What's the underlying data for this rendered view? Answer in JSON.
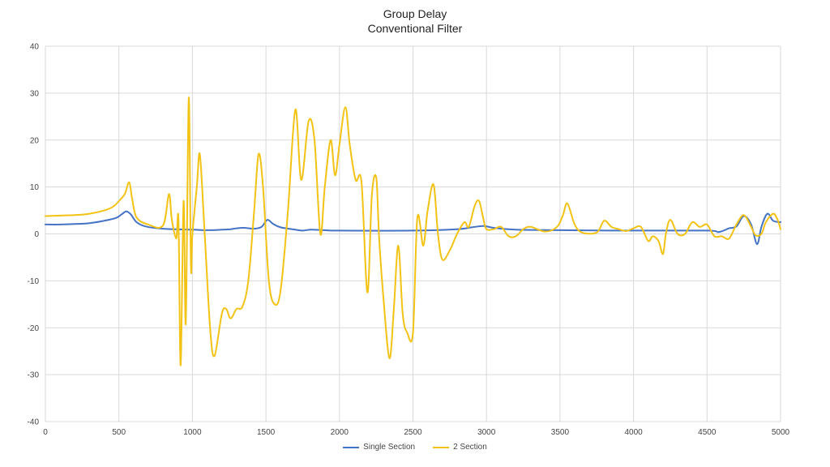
{
  "chart_data": {
    "type": "line",
    "title": "Group Delay",
    "subtitle": "Conventional Filter",
    "xlabel": "",
    "ylabel": "",
    "xlim": [
      0,
      5000
    ],
    "ylim": [
      -40,
      40
    ],
    "x_ticks": [
      0,
      500,
      1000,
      1500,
      2000,
      2500,
      3000,
      3500,
      4000,
      4500,
      5000
    ],
    "y_ticks": [
      40,
      30,
      20,
      10,
      0,
      -10,
      -20,
      -30,
      -40
    ],
    "grid": true,
    "legend_position": "bottom",
    "series": [
      {
        "name": "Single Section",
        "color": "#4472c4",
        "points": [
          [
            0,
            2
          ],
          [
            100,
            2
          ],
          [
            200,
            2.1
          ],
          [
            300,
            2.3
          ],
          [
            400,
            2.8
          ],
          [
            480,
            3.4
          ],
          [
            520,
            4.2
          ],
          [
            550,
            4.8
          ],
          [
            580,
            4.2
          ],
          [
            620,
            2.5
          ],
          [
            680,
            1.6
          ],
          [
            800,
            1.1
          ],
          [
            1000,
            0.9
          ],
          [
            1100,
            0.8
          ],
          [
            1200,
            0.9
          ],
          [
            1260,
            1
          ],
          [
            1300,
            1.2
          ],
          [
            1350,
            1.3
          ],
          [
            1420,
            1.1
          ],
          [
            1470,
            1.5
          ],
          [
            1510,
            3
          ],
          [
            1550,
            2.1
          ],
          [
            1600,
            1.4
          ],
          [
            1700,
            0.9
          ],
          [
            1750,
            0.7
          ],
          [
            1800,
            0.9
          ],
          [
            1900,
            0.8
          ],
          [
            2000,
            0.7
          ],
          [
            2500,
            0.7
          ],
          [
            2800,
            1
          ],
          [
            2900,
            1.4
          ],
          [
            2980,
            1.7
          ],
          [
            3050,
            1.3
          ],
          [
            3200,
            0.9
          ],
          [
            3500,
            0.8
          ],
          [
            4000,
            0.7
          ],
          [
            4500,
            0.7
          ],
          [
            4580,
            0.4
          ],
          [
            4650,
            1.2
          ],
          [
            4700,
            1.6
          ],
          [
            4750,
            3.8
          ],
          [
            4800,
            2
          ],
          [
            4840,
            -2.2
          ],
          [
            4870,
            1.5
          ],
          [
            4910,
            4.3
          ],
          [
            4950,
            2.8
          ],
          [
            5000,
            2.5
          ]
        ]
      },
      {
        "name": "2 Section",
        "color": "#f2c314",
        "points": [
          [
            0,
            3.8
          ],
          [
            200,
            4
          ],
          [
            300,
            4.3
          ],
          [
            400,
            5
          ],
          [
            460,
            5.8
          ],
          [
            500,
            7
          ],
          [
            540,
            8.5
          ],
          [
            570,
            11
          ],
          [
            590,
            7.5
          ],
          [
            620,
            3.5
          ],
          [
            700,
            2
          ],
          [
            800,
            1.8
          ],
          [
            840,
            8.5
          ],
          [
            860,
            3
          ],
          [
            890,
            -1
          ],
          [
            905,
            3
          ],
          [
            920,
            -28
          ],
          [
            940,
            7
          ],
          [
            955,
            -19
          ],
          [
            975,
            29
          ],
          [
            990,
            -7
          ],
          [
            1000,
            0
          ],
          [
            1030,
            10
          ],
          [
            1050,
            17
          ],
          [
            1080,
            2
          ],
          [
            1120,
            -20
          ],
          [
            1150,
            -26
          ],
          [
            1200,
            -17
          ],
          [
            1230,
            -16
          ],
          [
            1260,
            -18
          ],
          [
            1300,
            -16
          ],
          [
            1340,
            -15.5
          ],
          [
            1380,
            -10
          ],
          [
            1420,
            5
          ],
          [
            1450,
            17
          ],
          [
            1480,
            10
          ],
          [
            1520,
            -10
          ],
          [
            1560,
            -15
          ],
          [
            1600,
            -12
          ],
          [
            1650,
            5
          ],
          [
            1700,
            26.5
          ],
          [
            1740,
            11.5
          ],
          [
            1790,
            24
          ],
          [
            1830,
            20
          ],
          [
            1870,
            0
          ],
          [
            1900,
            10
          ],
          [
            1940,
            20
          ],
          [
            1970,
            12.5
          ],
          [
            2000,
            19
          ],
          [
            2040,
            27
          ],
          [
            2070,
            19
          ],
          [
            2110,
            11.5
          ],
          [
            2150,
            11
          ],
          [
            2190,
            -12.5
          ],
          [
            2220,
            8
          ],
          [
            2250,
            12
          ],
          [
            2270,
            -1
          ],
          [
            2300,
            -14
          ],
          [
            2340,
            -26.5
          ],
          [
            2370,
            -16
          ],
          [
            2400,
            -2.5
          ],
          [
            2430,
            -17
          ],
          [
            2460,
            -21
          ],
          [
            2500,
            -21
          ],
          [
            2530,
            3.5
          ],
          [
            2570,
            -2.5
          ],
          [
            2600,
            5
          ],
          [
            2640,
            10.5
          ],
          [
            2670,
            0
          ],
          [
            2700,
            -5.5
          ],
          [
            2750,
            -3.5
          ],
          [
            2800,
            0
          ],
          [
            2850,
            2.5
          ],
          [
            2880,
            1.5
          ],
          [
            2920,
            6
          ],
          [
            2950,
            7
          ],
          [
            2980,
            3
          ],
          [
            3000,
            1
          ],
          [
            3050,
            1
          ],
          [
            3100,
            1.5
          ],
          [
            3150,
            -0.5
          ],
          [
            3200,
            -0.5
          ],
          [
            3250,
            1
          ],
          [
            3300,
            1.5
          ],
          [
            3400,
            0.5
          ],
          [
            3480,
            1.5
          ],
          [
            3520,
            4
          ],
          [
            3550,
            6.5
          ],
          [
            3600,
            2
          ],
          [
            3650,
            0.3
          ],
          [
            3750,
            0.3
          ],
          [
            3800,
            2.8
          ],
          [
            3850,
            1.5
          ],
          [
            3900,
            1
          ],
          [
            3950,
            0.6
          ],
          [
            4000,
            1.2
          ],
          [
            4050,
            1.5
          ],
          [
            4100,
            -1.5
          ],
          [
            4130,
            -0.5
          ],
          [
            4170,
            -1.5
          ],
          [
            4200,
            -4.3
          ],
          [
            4220,
            0
          ],
          [
            4250,
            3
          ],
          [
            4300,
            0
          ],
          [
            4350,
            0
          ],
          [
            4400,
            2.5
          ],
          [
            4450,
            1.5
          ],
          [
            4500,
            2
          ],
          [
            4550,
            -0.5
          ],
          [
            4600,
            -0.5
          ],
          [
            4650,
            -1
          ],
          [
            4700,
            2
          ],
          [
            4750,
            4
          ],
          [
            4800,
            1.5
          ],
          [
            4830,
            -0.3
          ],
          [
            4870,
            0
          ],
          [
            4900,
            2.5
          ],
          [
            4950,
            4.3
          ],
          [
            4980,
            3
          ],
          [
            5000,
            1
          ]
        ]
      }
    ]
  }
}
